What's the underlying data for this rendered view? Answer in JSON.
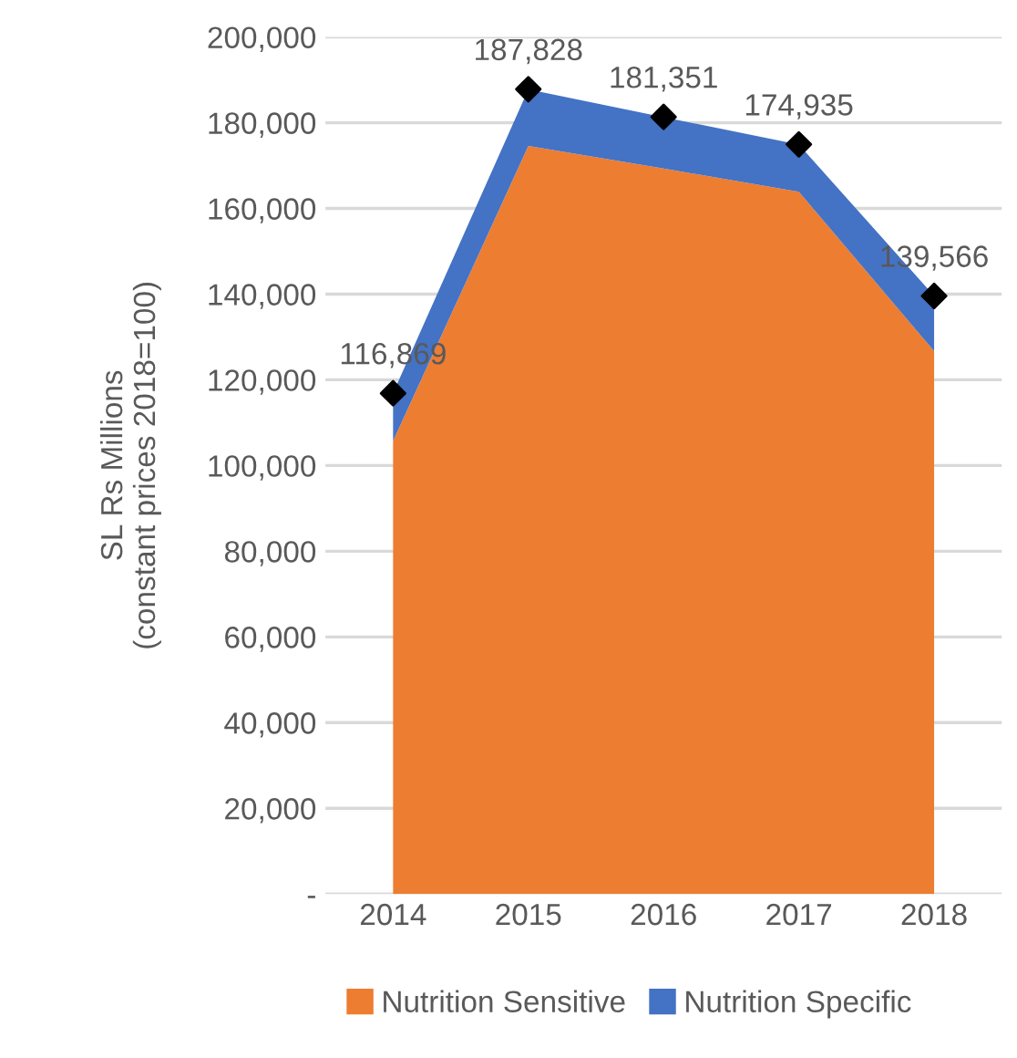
{
  "chart_data": {
    "type": "area",
    "stacked": true,
    "ylabel": "SL Rs Millions\n(constant prices 2018=100)",
    "categories": [
      "2014",
      "2015",
      "2016",
      "2017",
      "2018"
    ],
    "series": [
      {
        "name": "Nutrition Sensitive",
        "color": "#ed7d31",
        "values": [
          105700,
          174600,
          169300,
          163900,
          126700
        ]
      },
      {
        "name": "Nutrition Specific",
        "color": "#4472c4",
        "values": [
          11200,
          13200,
          12000,
          11000,
          12900
        ]
      },
      {
        "type": "scatter",
        "color": "#000000",
        "marker": "diamond",
        "values": [
          116869,
          187828,
          181351,
          174935,
          139566
        ],
        "value_labels": [
          "116,869",
          "187,828",
          "181,351",
          "174,935",
          "139,566"
        ]
      }
    ],
    "ylim": [
      0,
      200000
    ],
    "yticks": [
      {
        "value": 0,
        "label": "-"
      },
      {
        "value": 20000,
        "label": "20,000"
      },
      {
        "value": 40000,
        "label": "40,000"
      },
      {
        "value": 60000,
        "label": "60,000"
      },
      {
        "value": 80000,
        "label": "80,000"
      },
      {
        "value": 100000,
        "label": "100,000"
      },
      {
        "value": 120000,
        "label": "120,000"
      },
      {
        "value": 140000,
        "label": "140,000"
      },
      {
        "value": 160000,
        "label": "160,000"
      },
      {
        "value": 180000,
        "label": "180,000"
      },
      {
        "value": 200000,
        "label": "200,000"
      }
    ],
    "grid": "y",
    "legend": "bottom"
  }
}
